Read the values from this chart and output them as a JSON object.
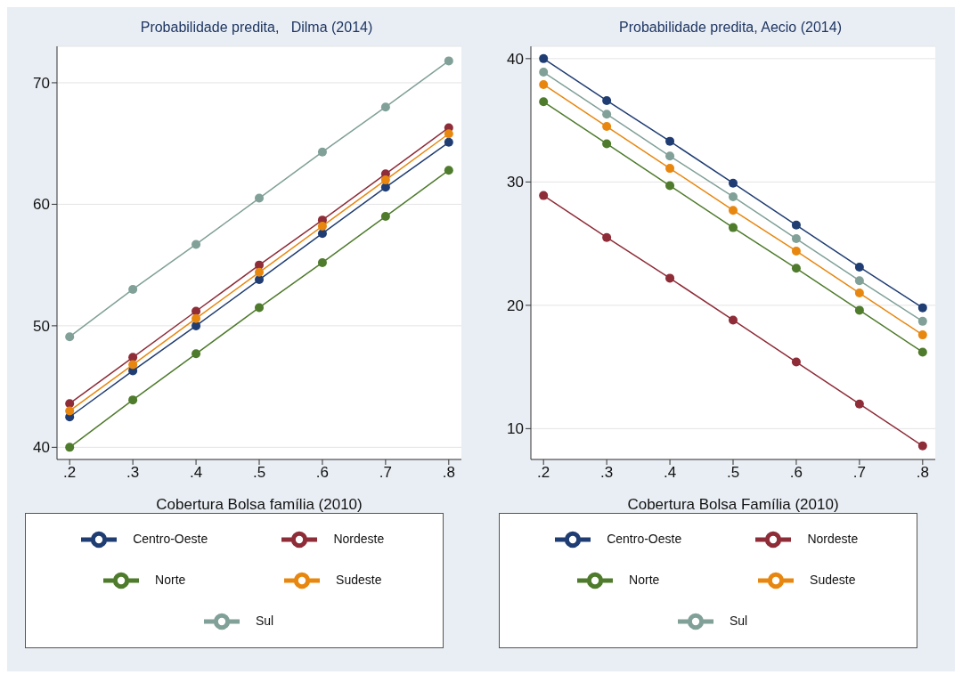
{
  "chart_data": [
    {
      "type": "line",
      "title": "Probabilidade predita,   Dilma (2014)",
      "xlabel": "Cobertura Bolsa família (2010)",
      "x": [
        0.2,
        0.3,
        0.4,
        0.5,
        0.6,
        0.7,
        0.8
      ],
      "xlim": [
        0.18,
        0.82
      ],
      "xticks": [
        {
          "value": 0.2,
          "label": ".2"
        },
        {
          "value": 0.3,
          "label": ".3"
        },
        {
          "value": 0.4,
          "label": ".4"
        },
        {
          "value": 0.5,
          "label": ".5"
        },
        {
          "value": 0.6,
          "label": ".6"
        },
        {
          "value": 0.7,
          "label": ".7"
        },
        {
          "value": 0.8,
          "label": ".8"
        }
      ],
      "ylim": [
        39,
        73
      ],
      "yticks": [
        40,
        50,
        60,
        70
      ],
      "grid": "y",
      "legend": "bottom",
      "marker": "circle",
      "line_style": "solid",
      "series": [
        {
          "name": "Centro-Oeste",
          "color": "#1f3d73",
          "values": [
            42.5,
            46.3,
            50.0,
            53.8,
            57.6,
            61.4,
            65.1
          ]
        },
        {
          "name": "Nordeste",
          "color": "#8e2c38",
          "values": [
            43.6,
            47.4,
            51.2,
            55.0,
            58.7,
            62.5,
            66.3
          ]
        },
        {
          "name": "Norte",
          "color": "#4f7b2c",
          "values": [
            40.0,
            43.9,
            47.7,
            51.5,
            55.2,
            59.0,
            62.8
          ]
        },
        {
          "name": "Sudeste",
          "color": "#e8870f",
          "values": [
            43.0,
            46.8,
            50.6,
            54.4,
            58.2,
            62.0,
            65.8
          ]
        },
        {
          "name": "Sul",
          "color": "#80a098",
          "values": [
            49.1,
            53.0,
            56.7,
            60.5,
            64.3,
            68.0,
            71.8
          ]
        }
      ]
    },
    {
      "type": "line",
      "title": "Probabilidade predita, Aecio (2014)",
      "xlabel": "Cobertura Bolsa Família (2010)",
      "x": [
        0.2,
        0.3,
        0.4,
        0.5,
        0.6,
        0.7,
        0.8
      ],
      "xlim": [
        0.18,
        0.82
      ],
      "xticks": [
        {
          "value": 0.2,
          "label": ".2"
        },
        {
          "value": 0.3,
          "label": ".3"
        },
        {
          "value": 0.4,
          "label": ".4"
        },
        {
          "value": 0.5,
          "label": ".5"
        },
        {
          "value": 0.6,
          "label": ".6"
        },
        {
          "value": 0.7,
          "label": ".7"
        },
        {
          "value": 0.8,
          "label": ".8"
        }
      ],
      "ylim": [
        7.5,
        41
      ],
      "yticks": [
        10,
        20,
        30,
        40
      ],
      "grid": "y",
      "legend": "bottom",
      "marker": "circle",
      "line_style": "solid",
      "series": [
        {
          "name": "Centro-Oeste",
          "color": "#1f3d73",
          "values": [
            40.0,
            36.6,
            33.3,
            29.9,
            26.5,
            23.1,
            19.8
          ]
        },
        {
          "name": "Nordeste",
          "color": "#8e2c38",
          "values": [
            28.9,
            25.5,
            22.2,
            18.8,
            15.4,
            12.0,
            8.6
          ]
        },
        {
          "name": "Norte",
          "color": "#4f7b2c",
          "values": [
            36.5,
            33.1,
            29.7,
            26.3,
            23.0,
            19.6,
            16.2
          ]
        },
        {
          "name": "Sudeste",
          "color": "#e8870f",
          "values": [
            37.9,
            34.5,
            31.1,
            27.7,
            24.4,
            21.0,
            17.6
          ]
        },
        {
          "name": "Sul",
          "color": "#80a098",
          "values": [
            38.9,
            35.5,
            32.1,
            28.8,
            25.4,
            22.0,
            18.7
          ]
        }
      ]
    }
  ]
}
